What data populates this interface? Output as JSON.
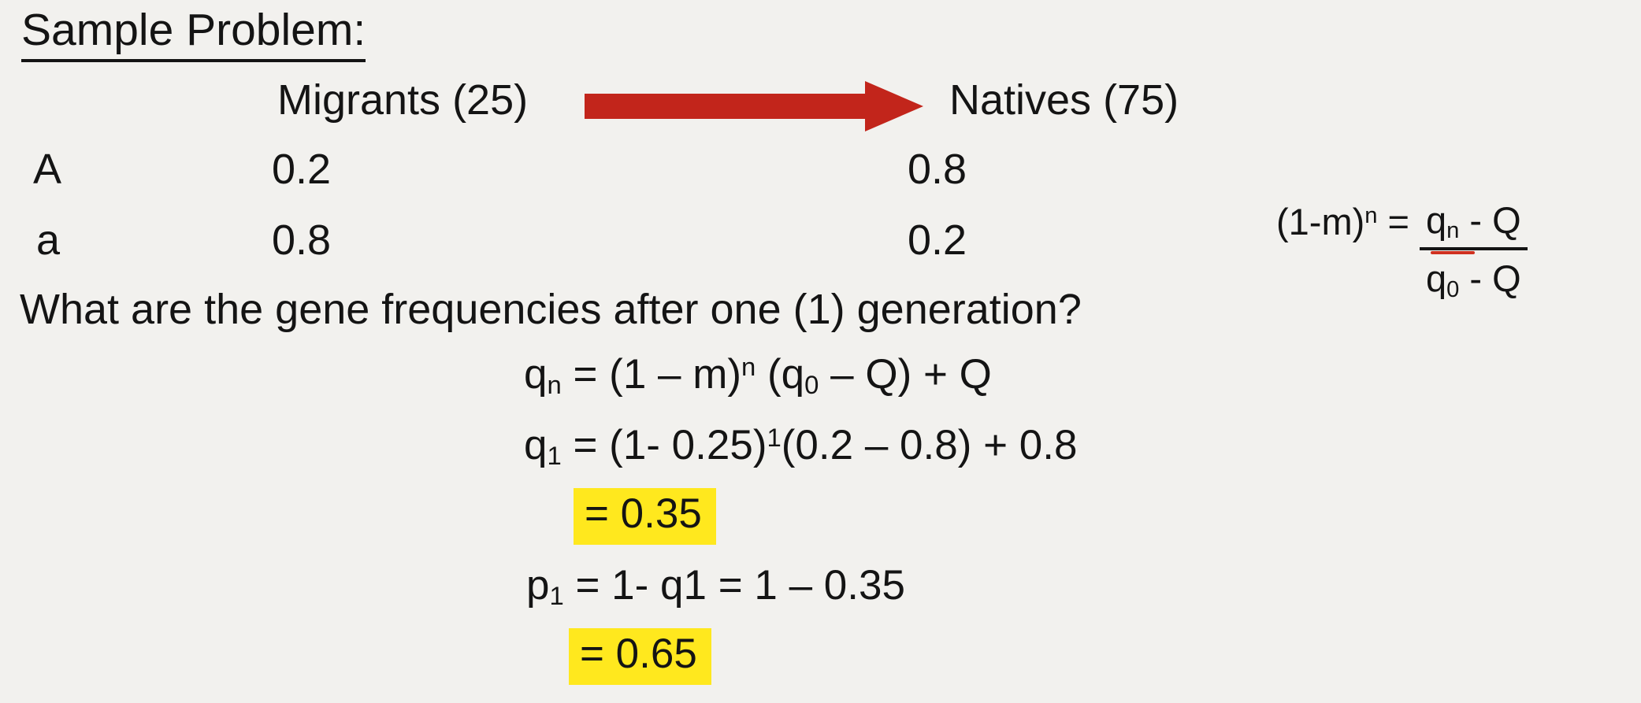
{
  "slide": {
    "background_color": "#f2f1ee",
    "text_color": "#141414",
    "title": "Sample Problem:",
    "table": {
      "migrants_header": "Migrants (25)",
      "natives_header": "Natives (75)",
      "rows": [
        {
          "allele": "A",
          "migrants": "0.2",
          "natives": "0.8"
        },
        {
          "allele": "a",
          "migrants": "0.8",
          "natives": "0.2"
        }
      ]
    },
    "arrow": {
      "color": "#c2251b"
    },
    "question": "What are the gene frequencies after one (1) generation?",
    "side_formula": {
      "lhs_segments": [
        "(1-m)",
        {
          "sup": "n"
        },
        " = "
      ],
      "numerator_segments": [
        "q",
        {
          "sub": "n"
        },
        " - Q"
      ],
      "denominator_segments": [
        "q",
        {
          "sub": "0"
        },
        " - Q"
      ]
    },
    "equations": {
      "highlight_color": "#ffe81e",
      "lines": [
        {
          "highlight": false,
          "segments": [
            "q",
            {
              "sub": "n"
            },
            " = (1 – m)",
            {
              "sup": "n"
            },
            " (q",
            {
              "sub": "0"
            },
            " – Q) + Q"
          ]
        },
        {
          "highlight": false,
          "segments": [
            "q",
            {
              "sub": "1"
            },
            " = (1- 0.25)",
            {
              "sup": "1"
            },
            "(0.2 – 0.8) + 0.8"
          ]
        },
        {
          "highlight": true,
          "segments": [
            "= 0.35"
          ]
        },
        {
          "highlight": false,
          "segments": [
            "p",
            {
              "sub": "1"
            },
            " = 1- q1 = 1 – 0.35"
          ]
        },
        {
          "highlight": true,
          "segments": [
            "= 0.65"
          ]
        }
      ]
    }
  }
}
